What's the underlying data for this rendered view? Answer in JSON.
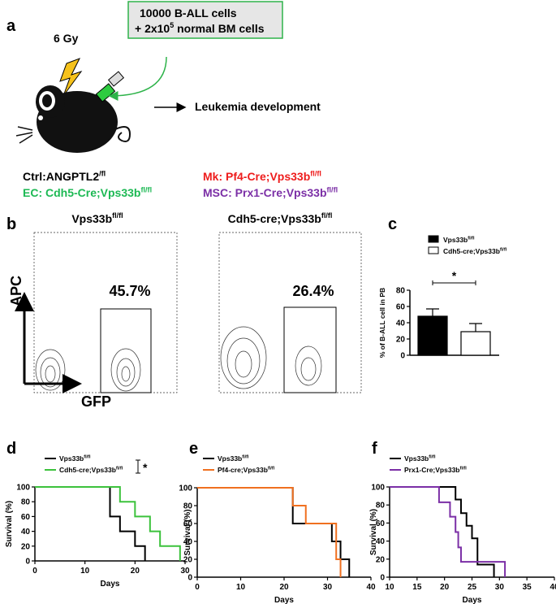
{
  "panel_labels": [
    "a",
    "b",
    "c",
    "d",
    "e",
    "f"
  ],
  "schematic": {
    "box_line1": "10000 B-ALL cells",
    "box_line2": "+ 2x10",
    "box_line2_sup": "5",
    "box_line2_end": " normal BM cells",
    "dose": "6 Gy",
    "outcome": "Leukemia development",
    "groups": [
      {
        "text": "Ctrl:ANGPTL2",
        "sup": "/fl",
        "color": "#000000"
      },
      {
        "text": "Mk: Pf4-Cre;Vps33b",
        "sup": "fl/fl",
        "color": "#ee1c1c"
      },
      {
        "text": "EC: Cdh5-Cre;Vps33b",
        "sup": "fl/fl",
        "color": "#1db954"
      },
      {
        "text": "MSC: Prx1-Cre;Vps33b",
        "sup": "fl/fl",
        "color": "#7b2fa6"
      }
    ]
  },
  "flow": {
    "plots": [
      {
        "title": "Vps33b",
        "title_sup": "fl/fl",
        "gate_label": "45.7%"
      },
      {
        "title": "Cdh5-cre;Vps33b",
        "title_sup": "fl/fl",
        "gate_label": "26.4%"
      }
    ],
    "y_axis": "APC",
    "x_axis": "GFP"
  },
  "chart_data": [
    {
      "type": "bar",
      "y_label": "% of B-ALL cell in PB",
      "ylim": [
        0,
        80
      ],
      "yticks": [
        0,
        20,
        40,
        60,
        80
      ],
      "annotation": "*",
      "series": [
        {
          "name": "Vps33b",
          "name_sup": "fl/fl",
          "color": "#000000",
          "values": [
            48
          ],
          "errors": [
            9
          ]
        },
        {
          "name": "Cdh5-cre;Vps33b",
          "name_sup": "fl/fl",
          "color": "#ffffff",
          "values": [
            29
          ],
          "errors": [
            10
          ]
        }
      ]
    },
    {
      "type": "step",
      "x_label": "Days",
      "y_label": "Survival (%)",
      "xlim": [
        0,
        30
      ],
      "xticks": [
        0,
        10,
        20,
        30
      ],
      "ylim": [
        0,
        100
      ],
      "yticks": [
        0,
        20,
        40,
        60,
        80,
        100
      ],
      "annotation": "*",
      "series": [
        {
          "name": "Vps33b",
          "name_sup": "fl/fl",
          "color": "#000000",
          "x": [
            0,
            15,
            17,
            20,
            22
          ],
          "values": [
            100,
            60,
            40,
            20,
            0
          ]
        },
        {
          "name": "Cdh5-cre;Vps33b",
          "name_sup": "fl/fl",
          "color": "#3cc23c",
          "x": [
            0,
            17,
            20,
            23,
            25,
            29
          ],
          "values": [
            100,
            80,
            60,
            40,
            20,
            0
          ]
        }
      ]
    },
    {
      "type": "step",
      "x_label": "Days",
      "y_label": "Survival (%)",
      "xlim": [
        0,
        40
      ],
      "xticks": [
        0,
        10,
        20,
        30,
        40
      ],
      "ylim": [
        0,
        100
      ],
      "yticks": [
        0,
        20,
        40,
        60,
        80,
        100
      ],
      "series": [
        {
          "name": "Vps33b",
          "name_sup": "fl/fl",
          "color": "#000000",
          "x": [
            0,
            22,
            31,
            33,
            35
          ],
          "values": [
            100,
            60,
            40,
            20,
            0
          ]
        },
        {
          "name": "Pf4-cre;Vps33b",
          "name_sup": "fl/fl",
          "color": "#f07020",
          "x": [
            0,
            22,
            25,
            32,
            33
          ],
          "values": [
            100,
            80,
            60,
            20,
            0
          ]
        }
      ]
    },
    {
      "type": "step",
      "x_label": "Days",
      "y_label": "Survival (%)",
      "xlim": [
        10,
        40
      ],
      "xticks": [
        10,
        15,
        20,
        25,
        30,
        35,
        40
      ],
      "ylim": [
        0,
        100
      ],
      "yticks": [
        0,
        20,
        40,
        60,
        80,
        100
      ],
      "series": [
        {
          "name": "Vps33b",
          "name_sup": "fl/fl",
          "color": "#000000",
          "x": [
            10,
            22,
            23,
            24,
            25,
            26,
            29
          ],
          "values": [
            100,
            86,
            71,
            57,
            43,
            14,
            0
          ]
        },
        {
          "name": "Prx1-Cre;Vps33b",
          "name_sup": "fl/fl",
          "color": "#7b2fa6",
          "x": [
            10,
            19,
            21,
            22,
            22.5,
            23,
            31
          ],
          "values": [
            100,
            83,
            67,
            50,
            33,
            17,
            0
          ]
        }
      ]
    }
  ]
}
